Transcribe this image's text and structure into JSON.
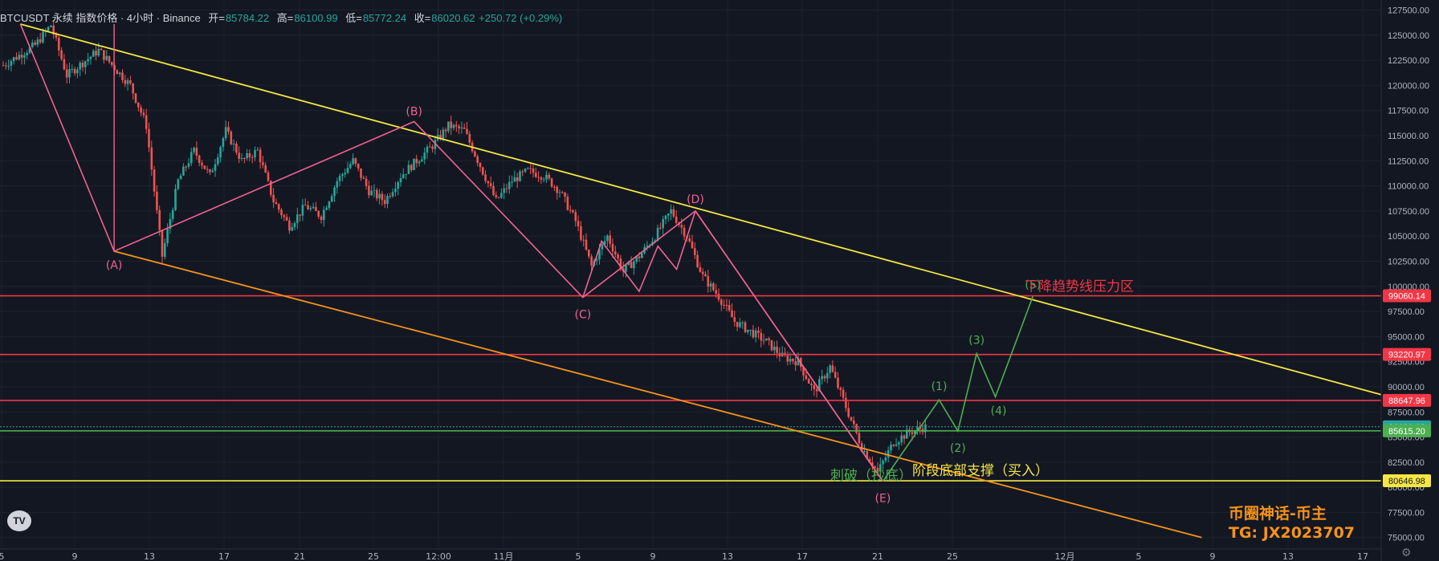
{
  "header": {
    "symbol": "BTCUSDT 永续 指数价格 · 4小时 · Binance",
    "open_label": "开=",
    "open": "85784.22",
    "high_label": "高=",
    "high": "86100.99",
    "low_label": "低=",
    "low": "85772.24",
    "close_label": "收=",
    "close": "86020.62",
    "change": "+250.72 (+0.29%)"
  },
  "watermark": {
    "line1": "币圈神话-币主",
    "line2": "TG:  JX2023707"
  },
  "colors": {
    "background": "#131722",
    "up": "#26a69a",
    "down": "#ef5350",
    "yellow": "#f5e642",
    "pink": "#f06292",
    "orange": "#f7931a",
    "red_level": "#f23645",
    "green_wave": "#4caf50"
  },
  "chart_data": {
    "type": "candlestick",
    "timeframe": "4h",
    "ylim": [
      74500,
      128500
    ],
    "y_ticks": [
      75000,
      77500,
      80000,
      82500,
      85000,
      87500,
      90000,
      92500,
      95000,
      97500,
      100000,
      102500,
      105000,
      107500,
      110000,
      112500,
      115000,
      117500,
      120000,
      122500,
      125000,
      127500
    ],
    "x_ticks": [
      "5",
      "9",
      "13",
      "17",
      "21",
      "25",
      "12:00",
      "11月",
      "5",
      "9",
      "13",
      "17",
      "21",
      "25",
      "12月",
      "5",
      "9",
      "13",
      "17"
    ],
    "price_path": [
      [
        0,
        122000
      ],
      [
        2,
        124000
      ],
      [
        3,
        126000
      ],
      [
        4,
        121000
      ],
      [
        6,
        123500
      ],
      [
        8,
        120000
      ],
      [
        9,
        116000
      ],
      [
        10,
        103000
      ],
      [
        11,
        110500
      ],
      [
        12,
        113500
      ],
      [
        13,
        111000
      ],
      [
        14,
        115500
      ],
      [
        15,
        112500
      ],
      [
        16,
        113500
      ],
      [
        17,
        108500
      ],
      [
        18,
        106000
      ],
      [
        19,
        108000
      ],
      [
        20,
        107000
      ],
      [
        21,
        110500
      ],
      [
        22,
        112500
      ],
      [
        23,
        109500
      ],
      [
        24,
        108500
      ],
      [
        25,
        111000
      ],
      [
        26,
        112500
      ],
      [
        27,
        114000
      ],
      [
        28,
        116000
      ],
      [
        29,
        115500
      ],
      [
        30,
        112000
      ],
      [
        31,
        108500
      ],
      [
        32,
        110500
      ],
      [
        33,
        111500
      ],
      [
        34,
        111000
      ],
      [
        35,
        109500
      ],
      [
        36,
        106500
      ],
      [
        37,
        102000
      ],
      [
        38,
        105000
      ],
      [
        39,
        101500
      ],
      [
        40,
        103000
      ],
      [
        41,
        105000
      ],
      [
        42,
        107500
      ],
      [
        43,
        105000
      ],
      [
        44,
        101000
      ],
      [
        45,
        99000
      ],
      [
        46,
        96500
      ],
      [
        47,
        95500
      ],
      [
        48,
        94500
      ],
      [
        49,
        93000
      ],
      [
        50,
        92500
      ],
      [
        51,
        89500
      ],
      [
        52,
        92000
      ],
      [
        53,
        88000
      ],
      [
        54,
        84000
      ],
      [
        55,
        81500
      ],
      [
        56,
        84500
      ],
      [
        57,
        85500
      ],
      [
        58,
        86000
      ]
    ],
    "horizontal_levels": [
      {
        "price": 99060.14,
        "label": "99060.14",
        "color": "#f23645"
      },
      {
        "price": 93220.97,
        "label": "93220.97",
        "color": "#f23645"
      },
      {
        "price": 88647.96,
        "label": "88647.96",
        "color": "#f23645"
      },
      {
        "price": 86020.62,
        "label": "86020.62",
        "color": "#26a69a"
      },
      {
        "price": 85615.2,
        "label": "85615.20",
        "color": "#4caf50"
      },
      {
        "price": 80646.98,
        "label": "80646.98",
        "color": "#f5e642"
      }
    ],
    "trendlines": [
      {
        "name": "upper",
        "from": [
          "2025-10-06",
          126100
        ],
        "to": [
          "2025-12-19",
          88500
        ],
        "color": "#f5e642"
      },
      {
        "name": "lower",
        "from": [
          "2025-10-11",
          103500
        ],
        "to": [
          "2025-12-08",
          75000
        ],
        "color": "#f7931a"
      }
    ],
    "abcde_wave": {
      "points": [
        {
          "label": "",
          "x": "2025-10-06",
          "y": 126100
        },
        {
          "label": "(A)",
          "x": "2025-10-11",
          "y": 103500
        },
        {
          "label": "(B)",
          "x": "2025-10-27",
          "y": 116400
        },
        {
          "label": "(C)",
          "x": "2025-11-05",
          "y": 98900
        },
        {
          "label": "(D)",
          "x": "2025-11-11",
          "y": 107500
        },
        {
          "label": "(E)",
          "x": "2025-11-21",
          "y": 80600
        }
      ],
      "color": "#f06292"
    },
    "inner_zigzag": {
      "points": [
        [
          "2025-11-05",
          98900
        ],
        [
          "2025-11-06",
          104500
        ],
        [
          "2025-11-08",
          99500
        ],
        [
          "2025-11-09",
          104000
        ],
        [
          "2025-11-10",
          101700
        ],
        [
          "2025-11-11",
          107500
        ]
      ],
      "color": "#f06292"
    },
    "projection_wave": {
      "points": [
        {
          "label": "",
          "x": "2025-11-21",
          "y": 80600
        },
        {
          "label": "(1)",
          "x": "2025-11-24",
          "y": 88700
        },
        {
          "label": "(2)",
          "x": "2025-11-25",
          "y": 85600
        },
        {
          "label": "(3)",
          "x": "2025-11-26",
          "y": 93300
        },
        {
          "label": "(4)",
          "x": "2025-11-27",
          "y": 89000
        },
        {
          "label": "(5)",
          "x": "2025-11-29",
          "y": 99000
        }
      ],
      "color": "#4caf50"
    },
    "annotations": [
      {
        "text": "下降趋势线压力区",
        "color": "#f23645"
      },
      {
        "text": "阶段底部支撑（买入）",
        "color": "#f5e642"
      },
      {
        "text": "刺破（抄底）",
        "color": "#4caf50"
      }
    ]
  }
}
